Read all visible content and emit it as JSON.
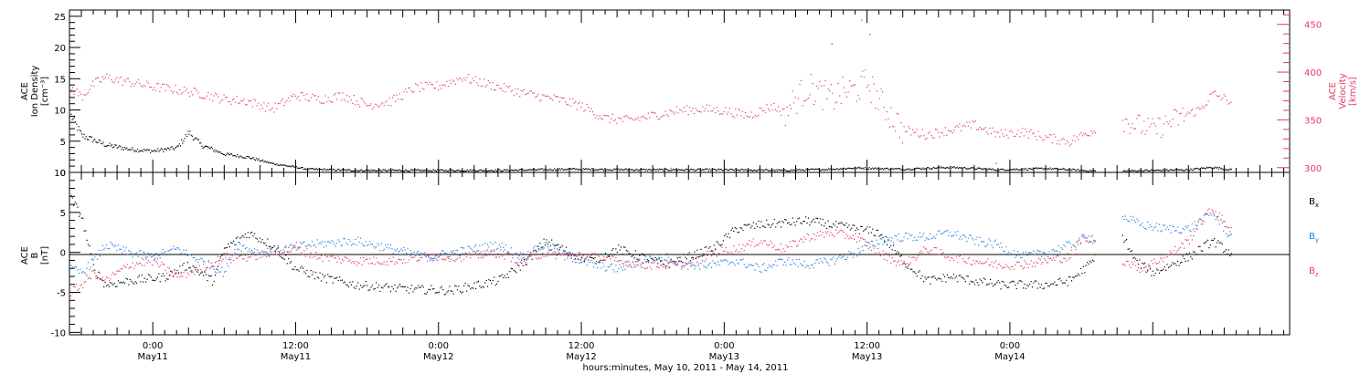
{
  "chart_data": [
    {
      "type": "scatter",
      "panel": "top",
      "ylabel_left": [
        "ACE",
        "Ion Density",
        "[cm⁻³]"
      ],
      "ylabel_right": [
        "ACE",
        "Velocity",
        "[km/s]"
      ],
      "ylim_left": [
        0,
        26
      ],
      "yticks_left": [
        "0",
        "5",
        "10",
        "15",
        "20",
        "25"
      ],
      "ylim_right": [
        295,
        465
      ],
      "yticks_right": [
        "300",
        "350",
        "400",
        "450"
      ],
      "series": [
        {
          "color": "#000000",
          "points": [
            [
              0.0,
              9.5
            ],
            [
              1.0,
              6.0
            ],
            [
              3.0,
              4.5
            ],
            [
              5.0,
              3.8
            ],
            [
              7.0,
              3.5
            ],
            [
              9.0,
              4.0
            ],
            [
              10.0,
              6.5
            ],
            [
              11.0,
              4.5
            ],
            [
              13.0,
              3.0
            ],
            [
              15.0,
              2.5
            ],
            [
              17.0,
              1.5
            ],
            [
              20.0,
              0.6
            ],
            [
              24.0,
              0.4
            ],
            [
              30.0,
              0.4
            ],
            [
              36.0,
              0.4
            ],
            [
              42.0,
              0.6
            ],
            [
              48.0,
              0.5
            ],
            [
              54.0,
              0.5
            ],
            [
              60.0,
              0.4
            ],
            [
              64.0,
              0.6
            ],
            [
              66.0,
              0.8
            ],
            [
              70.0,
              0.6
            ],
            [
              74.0,
              0.9
            ],
            [
              78.0,
              0.5
            ],
            [
              82.0,
              0.7
            ],
            [
              86.0,
              0.3
            ],
            [
              88.5,
              0.3
            ],
            [
              91.0,
              0.4
            ],
            [
              94.0,
              0.5
            ],
            [
              96.0,
              0.9
            ],
            [
              97.5,
              0.5
            ]
          ]
        },
        {
          "color": "#e03c64",
          "points": [
            [
              0.0,
              385
            ],
            [
              1.0,
              375
            ],
            [
              2.0,
              388
            ],
            [
              3.0,
              395
            ],
            [
              5.0,
              390
            ],
            [
              7.0,
              385
            ],
            [
              9.0,
              382
            ],
            [
              11.0,
              378
            ],
            [
              13.0,
              372
            ],
            [
              15.0,
              370
            ],
            [
              17.0,
              362
            ],
            [
              19.0,
              376
            ],
            [
              21.0,
              372
            ],
            [
              23.0,
              376
            ],
            [
              25.0,
              366
            ],
            [
              27.0,
              370
            ],
            [
              29.0,
              384
            ],
            [
              31.0,
              386
            ],
            [
              33.0,
              395
            ],
            [
              35.0,
              388
            ],
            [
              37.0,
              382
            ],
            [
              39.0,
              376
            ],
            [
              41.0,
              372
            ],
            [
              43.0,
              365
            ],
            [
              45.0,
              352
            ],
            [
              47.0,
              350
            ],
            [
              49.0,
              355
            ],
            [
              51.0,
              360
            ],
            [
              53.0,
              362
            ],
            [
              55.0,
              360
            ],
            [
              57.0,
              355
            ],
            [
              59.0,
              365
            ],
            [
              60.0,
              358
            ],
            [
              61.0,
              372
            ],
            [
              62.0,
              385
            ],
            [
              63.0,
              378
            ],
            [
              64.0,
              373
            ],
            [
              65.0,
              380
            ],
            [
              66.0,
              382
            ],
            [
              67.0,
              390
            ],
            [
              68.0,
              370
            ],
            [
              69.0,
              355
            ],
            [
              70.0,
              340
            ],
            [
              72.0,
              335
            ],
            [
              74.0,
              340
            ],
            [
              76.0,
              345
            ],
            [
              78.0,
              335
            ],
            [
              80.0,
              338
            ],
            [
              82.0,
              332
            ],
            [
              84.0,
              328
            ],
            [
              86.0,
              340
            ],
            [
              87.5,
              352
            ],
            [
              88.5,
              350
            ],
            [
              91.0,
              340
            ],
            [
              93.0,
              352
            ],
            [
              95.0,
              362
            ],
            [
              96.0,
              378
            ],
            [
              97.5,
              370
            ]
          ]
        }
      ]
    },
    {
      "type": "scatter",
      "panel": "bottom",
      "ylabel_left": [
        "ACE",
        "B",
        "[nT]"
      ],
      "ylim": [
        -10.3,
        10
      ],
      "yticks": [
        "-10",
        "-5",
        "0",
        "5",
        "10"
      ],
      "legend": [
        "Bx",
        "By",
        "Bz"
      ],
      "legend_placement": "right",
      "series": [
        {
          "name": "Bx",
          "color": "#000000",
          "points": [
            [
              0.0,
              7.0
            ],
            [
              1.0,
              4.5
            ],
            [
              2.0,
              -2.0
            ],
            [
              3.0,
              -4.0
            ],
            [
              5.0,
              -3.5
            ],
            [
              8.0,
              -3.0
            ],
            [
              10.0,
              -1.5
            ],
            [
              12.0,
              -3.5
            ],
            [
              13.0,
              0.5
            ],
            [
              15.0,
              2.5
            ],
            [
              17.0,
              1.0
            ],
            [
              19.0,
              -2.0
            ],
            [
              21.0,
              -3.0
            ],
            [
              24.0,
              -4.0
            ],
            [
              28.0,
              -4.5
            ],
            [
              32.0,
              -4.7
            ],
            [
              36.0,
              -3.5
            ],
            [
              38.0,
              -1.5
            ],
            [
              40.0,
              1.5
            ],
            [
              42.0,
              0.0
            ],
            [
              44.0,
              -1.0
            ],
            [
              46.0,
              0.5
            ],
            [
              48.0,
              -0.5
            ],
            [
              50.0,
              -1.5
            ],
            [
              52.0,
              -0.5
            ],
            [
              54.0,
              0.5
            ],
            [
              56.0,
              3.0
            ],
            [
              58.0,
              3.5
            ],
            [
              62.0,
              4.0
            ],
            [
              64.0,
              3.5
            ],
            [
              66.0,
              3.0
            ],
            [
              68.0,
              2.5
            ],
            [
              70.0,
              -1.0
            ],
            [
              72.0,
              -3.5
            ],
            [
              74.0,
              -3.0
            ],
            [
              76.0,
              -3.5
            ],
            [
              78.0,
              -4.0
            ],
            [
              82.0,
              -4.0
            ],
            [
              84.0,
              -3.5
            ],
            [
              86.0,
              -1.0
            ],
            [
              86.5,
              1.0
            ],
            [
              88.5,
              2.0
            ],
            [
              89.5,
              -1.0
            ],
            [
              91.0,
              -2.5
            ],
            [
              92.5,
              -1.5
            ],
            [
              94.0,
              -0.5
            ],
            [
              96.0,
              1.5
            ],
            [
              97.5,
              0.0
            ]
          ]
        },
        {
          "name": "By",
          "color": "#1f7fe0",
          "points": [
            [
              0.0,
              -2.0
            ],
            [
              1.0,
              -2.5
            ],
            [
              2.0,
              -1.0
            ],
            [
              3.0,
              1.0
            ],
            [
              5.0,
              0.0
            ],
            [
              7.0,
              -0.5
            ],
            [
              9.0,
              0.5
            ],
            [
              11.0,
              -1.0
            ],
            [
              13.0,
              -2.5
            ],
            [
              14.0,
              1.0
            ],
            [
              16.0,
              0.0
            ],
            [
              18.0,
              0.5
            ],
            [
              20.0,
              1.0
            ],
            [
              24.0,
              1.5
            ],
            [
              27.0,
              0.5
            ],
            [
              30.0,
              -0.5
            ],
            [
              32.0,
              0.0
            ],
            [
              34.0,
              0.5
            ],
            [
              36.0,
              1.0
            ],
            [
              38.0,
              -0.5
            ],
            [
              40.0,
              1.0
            ],
            [
              42.0,
              -0.5
            ],
            [
              44.0,
              -1.5
            ],
            [
              46.0,
              -2.0
            ],
            [
              48.0,
              -1.0
            ],
            [
              50.0,
              -0.5
            ],
            [
              52.0,
              -1.5
            ],
            [
              54.0,
              -1.5
            ],
            [
              56.0,
              -1.0
            ],
            [
              58.0,
              -2.0
            ],
            [
              60.0,
              -1.0
            ],
            [
              62.0,
              -1.5
            ],
            [
              64.0,
              -1.0
            ],
            [
              66.0,
              0.0
            ],
            [
              68.0,
              1.5
            ],
            [
              70.0,
              2.0
            ],
            [
              72.0,
              2.0
            ],
            [
              74.0,
              2.5
            ],
            [
              76.0,
              1.5
            ],
            [
              78.0,
              1.0
            ],
            [
              80.0,
              -0.5
            ],
            [
              82.0,
              0.0
            ],
            [
              84.0,
              1.0
            ],
            [
              86.0,
              2.0
            ],
            [
              87.0,
              1.5
            ],
            [
              88.5,
              4.5
            ],
            [
              90.0,
              3.5
            ],
            [
              92.0,
              3.0
            ],
            [
              94.0,
              3.0
            ],
            [
              95.0,
              4.0
            ],
            [
              96.0,
              5.0
            ],
            [
              97.5,
              2.0
            ]
          ]
        },
        {
          "name": "Bz",
          "color": "#e03c64",
          "points": [
            [
              0.0,
              -5.0
            ],
            [
              1.0,
              -4.0
            ],
            [
              2.0,
              -2.5
            ],
            [
              3.0,
              -3.5
            ],
            [
              5.0,
              -1.5
            ],
            [
              7.0,
              -1.0
            ],
            [
              9.0,
              -3.0
            ],
            [
              11.0,
              -2.0
            ],
            [
              13.0,
              -0.5
            ],
            [
              15.0,
              -0.5
            ],
            [
              17.0,
              0.0
            ],
            [
              19.0,
              0.5
            ],
            [
              21.0,
              -0.5
            ],
            [
              24.0,
              -1.0
            ],
            [
              27.0,
              -1.0
            ],
            [
              30.0,
              -0.5
            ],
            [
              33.0,
              -0.5
            ],
            [
              36.0,
              0.0
            ],
            [
              38.0,
              -1.0
            ],
            [
              40.0,
              0.0
            ],
            [
              42.0,
              -0.5
            ],
            [
              44.0,
              -0.5
            ],
            [
              46.0,
              -1.0
            ],
            [
              48.0,
              -1.5
            ],
            [
              50.0,
              -1.5
            ],
            [
              52.0,
              -1.5
            ],
            [
              54.0,
              0.0
            ],
            [
              56.0,
              0.5
            ],
            [
              58.0,
              1.5
            ],
            [
              60.0,
              0.5
            ],
            [
              62.0,
              2.0
            ],
            [
              64.0,
              2.5
            ],
            [
              66.0,
              2.0
            ],
            [
              68.0,
              0.0
            ],
            [
              70.0,
              -1.5
            ],
            [
              72.0,
              0.5
            ],
            [
              74.0,
              -0.5
            ],
            [
              76.0,
              -1.0
            ],
            [
              78.0,
              -1.5
            ],
            [
              80.0,
              -1.5
            ],
            [
              82.0,
              -1.0
            ],
            [
              84.0,
              -0.5
            ],
            [
              85.0,
              2.0
            ],
            [
              86.0,
              1.5
            ],
            [
              88.5,
              -1.0
            ],
            [
              90.0,
              -2.0
            ],
            [
              92.0,
              -0.5
            ],
            [
              94.0,
              1.5
            ],
            [
              95.0,
              4.0
            ],
            [
              96.0,
              5.5
            ],
            [
              97.5,
              3.0
            ]
          ]
        }
      ]
    }
  ],
  "x_axis": {
    "range_hours": [
      0,
      102.5
    ],
    "ticks": [
      {
        "time": "0:00",
        "date": "May11"
      },
      {
        "time": "12:00",
        "date": "May11"
      },
      {
        "time": "0:00",
        "date": "May12"
      },
      {
        "time": "12:00",
        "date": "May12"
      },
      {
        "time": "0:00",
        "date": "May13"
      },
      {
        "time": "12:00",
        "date": "May13"
      },
      {
        "time": "0:00",
        "date": "May14"
      }
    ],
    "label": "hours:minutes, May 10, 2011 - May 14, 2011"
  },
  "legend_labels": {
    "bx": "B",
    "bx_sub": "x",
    "by": "B",
    "by_sub": "y",
    "bz": "B",
    "bz_sub": "z"
  }
}
